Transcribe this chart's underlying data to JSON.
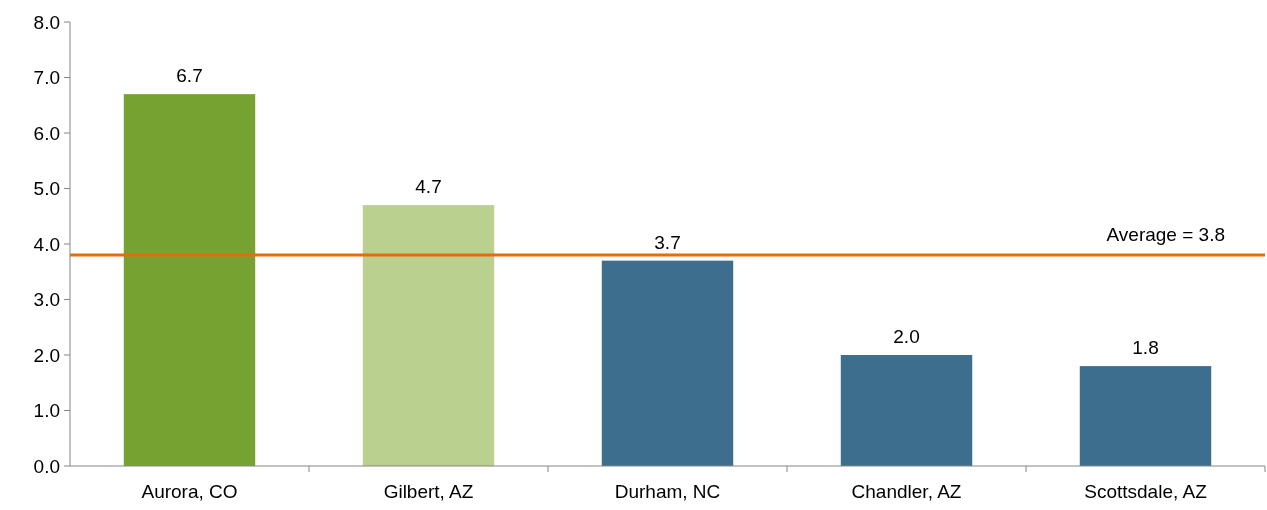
{
  "chart_data": {
    "type": "bar",
    "categories": [
      "Aurora, CO",
      "Gilbert, AZ",
      "Durham, NC",
      "Chandler, AZ",
      "Scottsdale, AZ"
    ],
    "values": [
      6.7,
      4.7,
      3.7,
      2.0,
      1.8
    ],
    "colors": [
      "#76a232",
      "#b9d08f",
      "#3e6e8e",
      "#3e6e8e",
      "#3e6e8e"
    ],
    "value_labels": [
      "6.7",
      "4.7",
      "3.7",
      "2.0",
      "1.8"
    ],
    "ylim": [
      0,
      8
    ],
    "yticks": [
      {
        "value": 0,
        "label": "0.0"
      },
      {
        "value": 1,
        "label": "1.0"
      },
      {
        "value": 2,
        "label": "2.0"
      },
      {
        "value": 3,
        "label": "3.0"
      },
      {
        "value": 4,
        "label": "4.0"
      },
      {
        "value": 5,
        "label": "5.0"
      },
      {
        "value": 6,
        "label": "6.0"
      },
      {
        "value": 7,
        "label": "7.0"
      },
      {
        "value": 8,
        "label": "8.0"
      }
    ],
    "ref_lines": [
      {
        "axis": "y",
        "value": 3.8,
        "label": "Average = 3.8",
        "color": "#e46c0a"
      }
    ],
    "grid": false
  }
}
